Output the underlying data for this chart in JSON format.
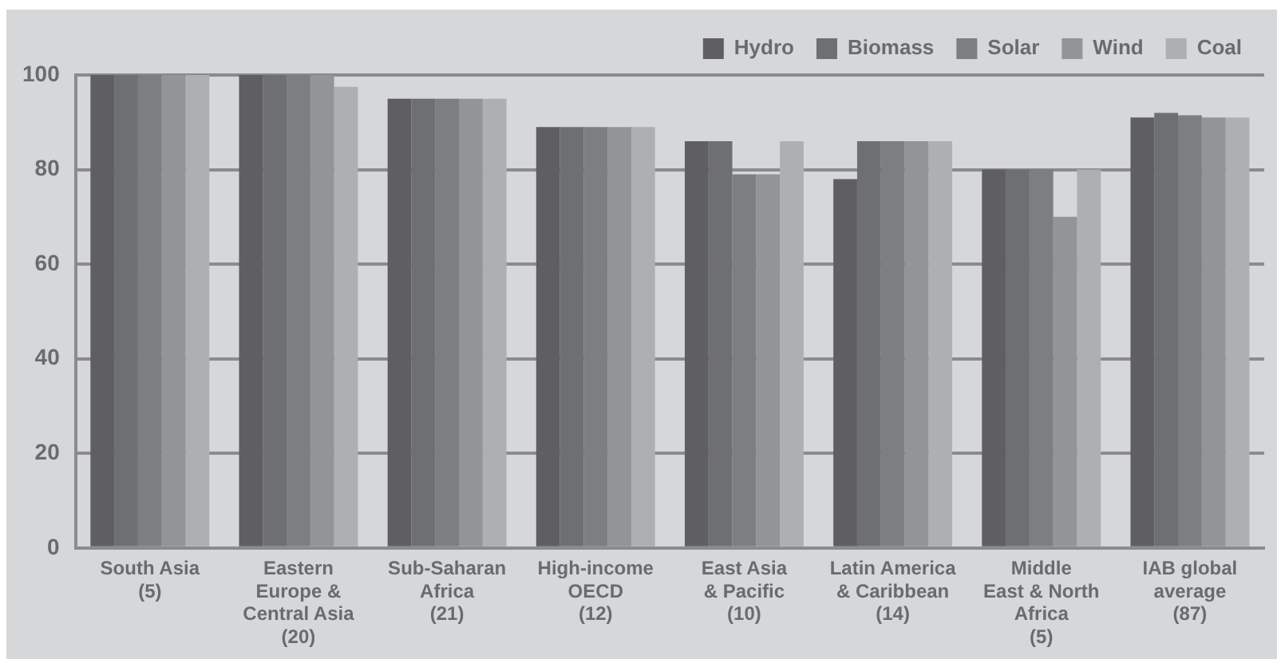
{
  "chart_data": {
    "type": "bar",
    "categories": [
      "South Asia\n(5)",
      "Eastern\nEurope &\nCentral Asia\n(20)",
      "Sub-Saharan\nAfrica\n(21)",
      "High-income\nOECD\n(12)",
      "East Asia\n& Pacific\n(10)",
      "Latin America\n& Caribbean\n(14)",
      "Middle\nEast & North\nAfrica\n(5)",
      "IAB global\naverage\n(87)"
    ],
    "series": [
      {
        "name": "Hydro",
        "color": "#5f5f61",
        "values": [
          100,
          100,
          95,
          89,
          86,
          78,
          80,
          91
        ]
      },
      {
        "name": "Biomass",
        "color": "#6e6f72",
        "values": [
          100,
          100,
          95,
          89,
          86,
          86,
          80,
          92
        ]
      },
      {
        "name": "Solar",
        "color": "#7d7e81",
        "values": [
          100,
          100,
          95,
          89,
          79,
          86,
          80,
          91.5
        ]
      },
      {
        "name": "Wind",
        "color": "#939497",
        "values": [
          100,
          100,
          95,
          89,
          79,
          86,
          70,
          91
        ]
      },
      {
        "name": "Coal",
        "color": "#aeafb1",
        "values": [
          100,
          97.5,
          95,
          89,
          86,
          86,
          80,
          91
        ]
      }
    ],
    "ylim": [
      0,
      100
    ],
    "yticks": [
      0,
      20,
      40,
      60,
      80,
      100
    ],
    "grid": "y",
    "legend": "top right"
  }
}
